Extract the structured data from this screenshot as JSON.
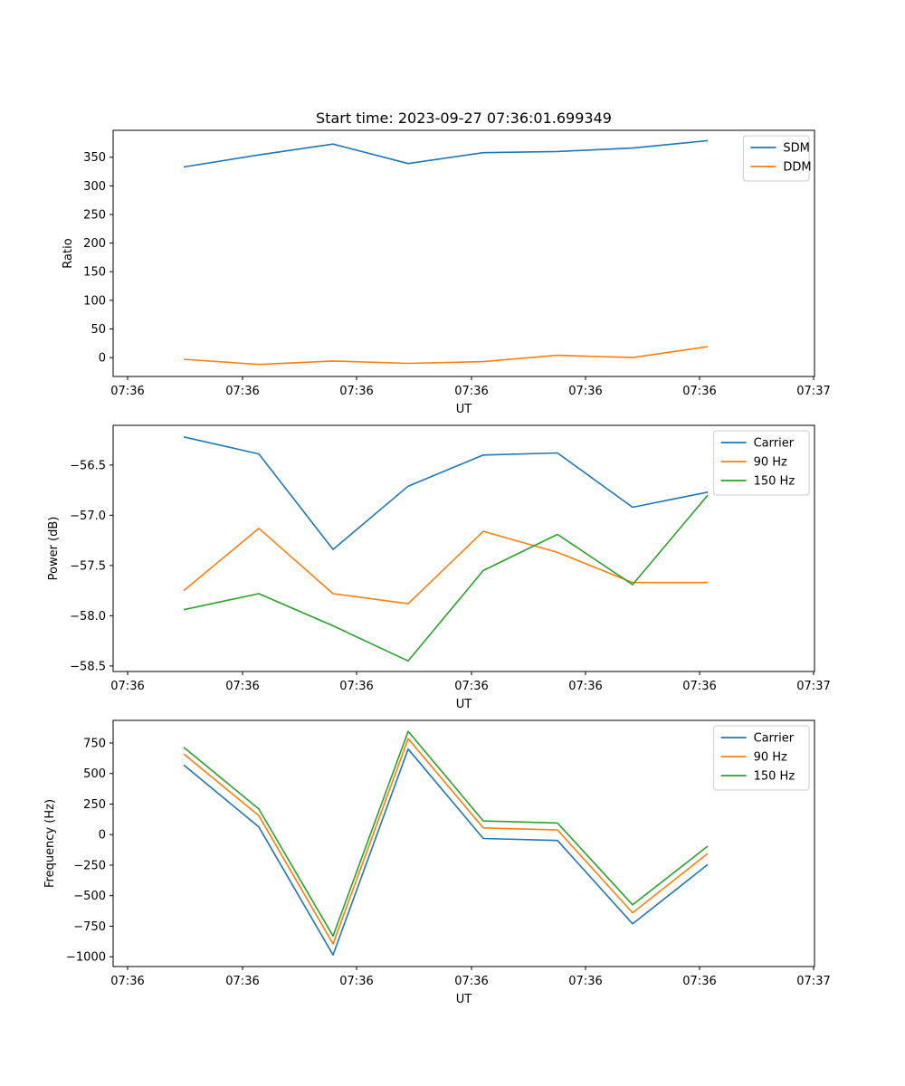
{
  "chart_data": [
    {
      "type": "line",
      "title": "Start time: 2023-09-27 07:36:01.699349",
      "xlabel": "UT",
      "ylabel": "Ratio",
      "x_tick_labels": [
        "07:36",
        "07:36",
        "07:36",
        "07:36",
        "07:36",
        "07:36",
        "07:37"
      ],
      "y_ticks": [
        0,
        50,
        100,
        150,
        200,
        250,
        300,
        350
      ],
      "ylim": [
        -33,
        397
      ],
      "legend_position": "top-right",
      "series": [
        {
          "name": "SDM",
          "color": "#1f77b4",
          "values": [
            333,
            354,
            373,
            339,
            358,
            360,
            366,
            379
          ]
        },
        {
          "name": "DDM",
          "color": "#ff7f0e",
          "values": [
            -3,
            -12,
            -6,
            -10,
            -7,
            4,
            0,
            19
          ]
        }
      ]
    },
    {
      "type": "line",
      "title": "",
      "xlabel": "UT",
      "ylabel": "Power (dB)",
      "x_tick_labels": [
        "07:36",
        "07:36",
        "07:36",
        "07:36",
        "07:36",
        "07:36",
        "07:37"
      ],
      "y_ticks": [
        -56.5,
        -57.0,
        -57.5,
        -58.0,
        -58.5
      ],
      "y_tick_labels": [
        "−56.5",
        "−57.0",
        "−57.5",
        "−58.0",
        "−58.5"
      ],
      "ylim": [
        -58.555,
        -56.105
      ],
      "legend_position": "top-right",
      "series": [
        {
          "name": "Carrier",
          "color": "#1f77b4",
          "values": [
            -56.22,
            -56.39,
            -57.34,
            -56.71,
            -56.4,
            -56.38,
            -56.92,
            -56.77
          ]
        },
        {
          "name": "90 Hz",
          "color": "#ff7f0e",
          "values": [
            -57.75,
            -57.13,
            -57.78,
            -57.88,
            -57.16,
            -57.37,
            -57.67,
            -57.67
          ]
        },
        {
          "name": "150 Hz",
          "color": "#2ca02c",
          "values": [
            -57.94,
            -57.78,
            -58.1,
            -58.45,
            -57.55,
            -57.19,
            -57.69,
            -56.8
          ]
        }
      ]
    },
    {
      "type": "line",
      "title": "",
      "xlabel": "UT",
      "ylabel": "Frequency (Hz)",
      "x_tick_labels": [
        "07:36",
        "07:36",
        "07:36",
        "07:36",
        "07:36",
        "07:36",
        "07:37"
      ],
      "y_ticks": [
        750,
        500,
        250,
        0,
        -250,
        -500,
        -750,
        -1000
      ],
      "y_tick_labels": [
        "750",
        "500",
        "250",
        "0",
        "−250",
        "−500",
        "−750",
        "−1000"
      ],
      "ylim": [
        -1080,
        935
      ],
      "legend_position": "top-right",
      "series": [
        {
          "name": "Carrier",
          "color": "#1f77b4",
          "values": [
            570,
            62,
            -985,
            700,
            -32,
            -48,
            -730,
            -245
          ]
        },
        {
          "name": "90 Hz",
          "color": "#ff7f0e",
          "values": [
            660,
            155,
            -895,
            785,
            55,
            38,
            -640,
            -155
          ]
        },
        {
          "name": "150 Hz",
          "color": "#2ca02c",
          "values": [
            715,
            210,
            -830,
            845,
            112,
            95,
            -575,
            -95
          ]
        }
      ]
    }
  ]
}
